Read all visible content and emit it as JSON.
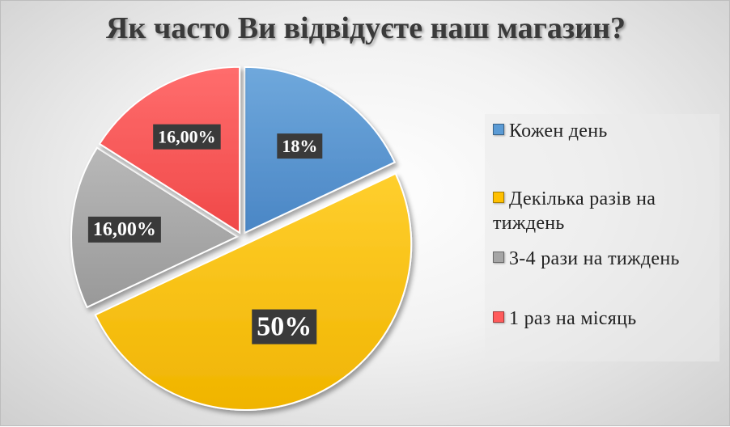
{
  "chart_data": {
    "type": "pie",
    "title": "Як часто Ви відвідуєте наш магазин?",
    "slices": [
      {
        "label": "Кожен день",
        "value": 18,
        "display": "18%",
        "color": "#5b9bd5"
      },
      {
        "label": "Декілька разів на тиждень",
        "value": 50,
        "display": "50%",
        "color": "#ffc000"
      },
      {
        "label": "3-4 рази на тиждень",
        "value": 16,
        "display": "16,00%",
        "color": "#a5a5a5"
      },
      {
        "label": "1 раз на місяць",
        "value": 16,
        "display": "16,00%",
        "color": "#ff5b5b"
      }
    ],
    "legend": "right"
  }
}
